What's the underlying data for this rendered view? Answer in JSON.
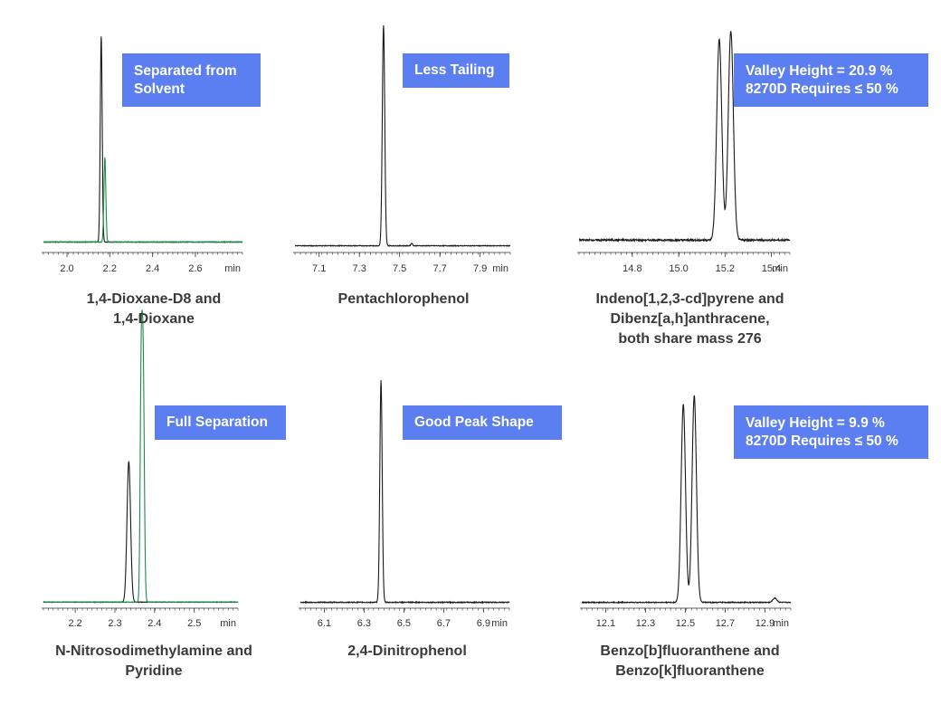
{
  "colors": {
    "trace_black": "#1a1a1a",
    "trace_green": "#1e8a4a",
    "callout_bg": "#5b7ff0",
    "callout_text": "#ffffff",
    "caption_text": "#3a3a3a",
    "axis": "#333333"
  },
  "chart_data": [
    {
      "type": "line",
      "xunit": "min",
      "ticks": [
        "2.0",
        "2.2",
        "2.4",
        "2.6"
      ],
      "xlim": [
        1.89,
        2.82
      ],
      "callout": [
        "Separated from",
        "Solvent"
      ],
      "caption": [
        "1,4-Dioxane-D8 and",
        "1,4-Dioxane"
      ],
      "series": [
        {
          "color": "#1a1a1a",
          "baseline": 0.02,
          "noise": 0.003,
          "peaks": [
            {
              "x": 2.16,
              "h": 1.0,
              "w": 0.0045,
              "tail": 0.004
            }
          ]
        },
        {
          "color": "#1e8a4a",
          "baseline": 0.02,
          "noise": 0.003,
          "peaks": [
            {
              "x": 2.177,
              "h": 0.41,
              "w": 0.0045,
              "tail": 0.004
            }
          ]
        }
      ]
    },
    {
      "type": "line",
      "xunit": "min",
      "ticks": [
        "7.1",
        "7.3",
        "7.5",
        "7.7",
        "7.9"
      ],
      "xlim": [
        6.98,
        8.05
      ],
      "callout": [
        "Less Tailing"
      ],
      "caption": [
        "Pentachlorophenol"
      ],
      "series": [
        {
          "color": "#1a1a1a",
          "baseline": 0.01,
          "noise": 0.003,
          "peaks": [
            {
              "x": 7.42,
              "h": 1.0,
              "w": 0.006,
              "tail": 0.012
            },
            {
              "x": 7.56,
              "h": 0.012,
              "w": 0.004,
              "tail": 0.004
            }
          ]
        }
      ]
    },
    {
      "type": "line",
      "xunit": "min",
      "ticks": [
        "14.8",
        "15.0",
        "15.2",
        "15.4"
      ],
      "xlim": [
        14.57,
        15.48
      ],
      "callout": [
        "Valley Height = 20.9 %",
        "8270D Requires ≤ 50 %"
      ],
      "caption": [
        "Indeno[1,2,3-cd]pyrene and",
        "Dibenz[a,h]anthracene,",
        "both share mass 276"
      ],
      "series": [
        {
          "color": "#1a1a1a",
          "baseline": 0.02,
          "noise": 0.008,
          "peaks": [
            {
              "x": 15.175,
              "h": 0.94,
              "w": 0.011,
              "tail": 0.006
            },
            {
              "x": 15.225,
              "h": 0.98,
              "w": 0.011,
              "tail": 0.012
            }
          ]
        }
      ]
    },
    {
      "type": "line",
      "xunit": "min",
      "ticks": [
        "2.2",
        "2.3",
        "2.4",
        "2.5"
      ],
      "xlim": [
        2.12,
        2.61
      ],
      "callout": [
        "Full Separation"
      ],
      "caption": [
        "N-Nitrosodimethylamine and",
        "Pyridine"
      ],
      "series": [
        {
          "color": "#1a1a1a",
          "baseline": 0.01,
          "noise": 0.002,
          "peaks": [
            {
              "x": 2.335,
              "h": 0.58,
              "w": 0.0045,
              "tail": 0.004
            }
          ]
        },
        {
          "color": "#1e8a4a",
          "baseline": 0.01,
          "noise": 0.002,
          "peaks": [
            {
              "x": 2.366,
              "h": 0.82,
              "w": 0.0025,
              "tail": 0.002
            },
            {
              "x": 2.371,
              "h": 1.0,
              "w": 0.003,
              "tail": 0.006
            }
          ]
        }
      ]
    },
    {
      "type": "line",
      "xunit": "min",
      "ticks": [
        "6.1",
        "6.3",
        "6.5",
        "6.7",
        "6.9"
      ],
      "xlim": [
        5.98,
        7.03
      ],
      "callout": [
        "Good Peak Shape"
      ],
      "caption": [
        "2,4-Dinitrophenol"
      ],
      "series": [
        {
          "color": "#1a1a1a",
          "baseline": 0.01,
          "noise": 0.004,
          "peaks": [
            {
              "x": 6.385,
              "h": 1.0,
              "w": 0.006,
              "tail": 0.012
            }
          ]
        }
      ]
    },
    {
      "type": "line",
      "xunit": "min",
      "ticks": [
        "12.1",
        "12.3",
        "12.5",
        "12.7",
        "12.9"
      ],
      "xlim": [
        11.98,
        13.03
      ],
      "callout": [
        "Valley Height = 9.9 %",
        "8270D Requires ≤ 50 %"
      ],
      "caption": [
        "Benzo[b]fluoranthene and",
        "Benzo[k]fluoranthene"
      ],
      "series": [
        {
          "color": "#1a1a1a",
          "baseline": 0.01,
          "noise": 0.004,
          "peaks": [
            {
              "x": 12.49,
              "h": 0.92,
              "w": 0.011,
              "tail": 0.006
            },
            {
              "x": 12.545,
              "h": 0.96,
              "w": 0.011,
              "tail": 0.01
            },
            {
              "x": 12.95,
              "h": 0.02,
              "w": 0.01,
              "tail": 0.01
            }
          ]
        }
      ]
    }
  ]
}
